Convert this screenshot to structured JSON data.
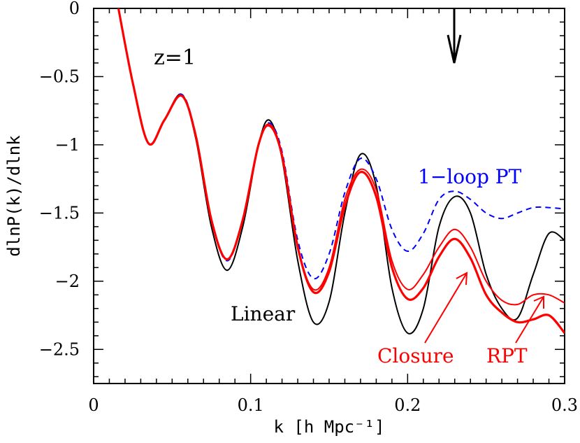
{
  "chart_data": {
    "type": "line",
    "xlabel": "k [h Mpc⁻¹]",
    "ylabel": "dlnP(k)/dlnk",
    "xlim": [
      0,
      0.3
    ],
    "ylim": [
      -2.75,
      0
    ],
    "x_ticks": [
      0,
      0.1,
      0.2,
      0.3
    ],
    "x_tick_labels": [
      "0",
      "0.1",
      "0.2",
      "0.3"
    ],
    "y_ticks": [
      0,
      -0.5,
      -1,
      -1.5,
      -2,
      -2.5
    ],
    "y_tick_labels": [
      "0",
      "−0.5",
      "−1",
      "−1.5",
      "−2",
      "−2.5"
    ],
    "annotation_z": "z=1",
    "colors": {
      "black": "#000000",
      "red": "#ff0000",
      "blue": "#0000ff"
    },
    "series": [
      {
        "name": "Linear",
        "color": "#000000",
        "style": "solid-thin",
        "points": [
          [
            0.015,
            0.05
          ],
          [
            0.025,
            -0.55
          ],
          [
            0.035,
            -0.99
          ],
          [
            0.045,
            -0.82
          ],
          [
            0.056,
            -0.63
          ],
          [
            0.065,
            -0.95
          ],
          [
            0.075,
            -1.6
          ],
          [
            0.085,
            -1.92
          ],
          [
            0.095,
            -1.6
          ],
          [
            0.105,
            -1.0
          ],
          [
            0.112,
            -0.82
          ],
          [
            0.12,
            -1.1
          ],
          [
            0.13,
            -1.85
          ],
          [
            0.14,
            -2.3
          ],
          [
            0.15,
            -2.15
          ],
          [
            0.16,
            -1.5
          ],
          [
            0.17,
            -1.07
          ],
          [
            0.18,
            -1.3
          ],
          [
            0.19,
            -2.05
          ],
          [
            0.2,
            -2.38
          ],
          [
            0.21,
            -2.2
          ],
          [
            0.22,
            -1.6
          ],
          [
            0.23,
            -1.38
          ],
          [
            0.24,
            -1.5
          ],
          [
            0.25,
            -1.95
          ],
          [
            0.26,
            -2.2
          ],
          [
            0.27,
            -2.27
          ],
          [
            0.28,
            -1.95
          ],
          [
            0.29,
            -1.65
          ],
          [
            0.3,
            -1.7
          ]
        ]
      },
      {
        "name": "1-loop PT",
        "label": "1−loop PT",
        "color": "#0000ff",
        "style": "dashed",
        "points": [
          [
            0.015,
            0.05
          ],
          [
            0.025,
            -0.55
          ],
          [
            0.035,
            -0.99
          ],
          [
            0.045,
            -0.82
          ],
          [
            0.056,
            -0.63
          ],
          [
            0.065,
            -0.92
          ],
          [
            0.075,
            -1.55
          ],
          [
            0.085,
            -1.85
          ],
          [
            0.095,
            -1.55
          ],
          [
            0.105,
            -1.0
          ],
          [
            0.112,
            -0.84
          ],
          [
            0.12,
            -1.05
          ],
          [
            0.13,
            -1.7
          ],
          [
            0.14,
            -1.98
          ],
          [
            0.15,
            -1.8
          ],
          [
            0.16,
            -1.35
          ],
          [
            0.17,
            -1.1
          ],
          [
            0.18,
            -1.25
          ],
          [
            0.19,
            -1.62
          ],
          [
            0.2,
            -1.78
          ],
          [
            0.21,
            -1.65
          ],
          [
            0.22,
            -1.4
          ],
          [
            0.23,
            -1.34
          ],
          [
            0.24,
            -1.4
          ],
          [
            0.25,
            -1.5
          ],
          [
            0.26,
            -1.54
          ],
          [
            0.27,
            -1.5
          ],
          [
            0.28,
            -1.46
          ],
          [
            0.29,
            -1.46
          ],
          [
            0.3,
            -1.47
          ]
        ]
      },
      {
        "name": "RPT",
        "color": "#ff0000",
        "style": "solid-thin",
        "points": [
          [
            0.015,
            0.05
          ],
          [
            0.025,
            -0.55
          ],
          [
            0.035,
            -0.99
          ],
          [
            0.045,
            -0.82
          ],
          [
            0.056,
            -0.64
          ],
          [
            0.065,
            -0.93
          ],
          [
            0.075,
            -1.55
          ],
          [
            0.085,
            -1.84
          ],
          [
            0.095,
            -1.55
          ],
          [
            0.105,
            -1.0
          ],
          [
            0.112,
            -0.85
          ],
          [
            0.12,
            -1.07
          ],
          [
            0.13,
            -1.75
          ],
          [
            0.14,
            -2.06
          ],
          [
            0.15,
            -1.9
          ],
          [
            0.16,
            -1.4
          ],
          [
            0.17,
            -1.18
          ],
          [
            0.18,
            -1.33
          ],
          [
            0.19,
            -1.85
          ],
          [
            0.2,
            -2.06
          ],
          [
            0.21,
            -1.95
          ],
          [
            0.22,
            -1.75
          ],
          [
            0.23,
            -1.62
          ],
          [
            0.24,
            -1.75
          ],
          [
            0.25,
            -2.0
          ],
          [
            0.26,
            -2.14
          ],
          [
            0.27,
            -2.17
          ],
          [
            0.28,
            -2.1
          ],
          [
            0.29,
            -2.1
          ],
          [
            0.3,
            -2.16
          ]
        ]
      },
      {
        "name": "Closure",
        "color": "#ff0000",
        "style": "solid-thick",
        "points": [
          [
            0.015,
            0.05
          ],
          [
            0.025,
            -0.55
          ],
          [
            0.035,
            -0.99
          ],
          [
            0.045,
            -0.82
          ],
          [
            0.056,
            -0.64
          ],
          [
            0.065,
            -0.93
          ],
          [
            0.075,
            -1.55
          ],
          [
            0.085,
            -1.84
          ],
          [
            0.095,
            -1.55
          ],
          [
            0.105,
            -1.0
          ],
          [
            0.112,
            -0.86
          ],
          [
            0.12,
            -1.08
          ],
          [
            0.13,
            -1.75
          ],
          [
            0.14,
            -2.08
          ],
          [
            0.15,
            -1.93
          ],
          [
            0.16,
            -1.45
          ],
          [
            0.17,
            -1.2
          ],
          [
            0.18,
            -1.38
          ],
          [
            0.19,
            -1.9
          ],
          [
            0.2,
            -2.13
          ],
          [
            0.21,
            -2.05
          ],
          [
            0.22,
            -1.82
          ],
          [
            0.23,
            -1.69
          ],
          [
            0.24,
            -1.83
          ],
          [
            0.25,
            -2.1
          ],
          [
            0.26,
            -2.23
          ],
          [
            0.27,
            -2.3
          ],
          [
            0.28,
            -2.28
          ],
          [
            0.29,
            -2.25
          ],
          [
            0.3,
            -2.38
          ]
        ]
      }
    ],
    "labels": {
      "linear": "Linear",
      "closure": "Closure",
      "rpt": "RPT",
      "oneloop": "1−loop PT"
    }
  }
}
